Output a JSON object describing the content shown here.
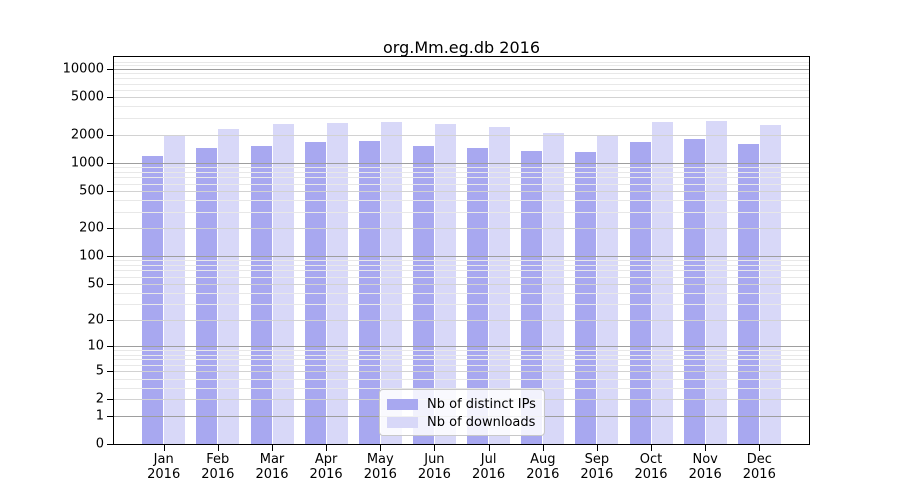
{
  "chart_data": {
    "type": "bar",
    "title": "org.Mm.eg.db 2016",
    "categories": [
      "Jan 2016",
      "Feb 2016",
      "Mar 2016",
      "Apr 2016",
      "May 2016",
      "Jun 2016",
      "Jul 2016",
      "Aug 2016",
      "Sep 2016",
      "Oct 2016",
      "Nov 2016",
      "Dec 2016"
    ],
    "series": [
      {
        "name": "Nb of distinct IPs",
        "color": "#a8a8f0",
        "values": [
          1180,
          1430,
          1520,
          1680,
          1710,
          1510,
          1430,
          1340,
          1300,
          1660,
          1810,
          1580
        ]
      },
      {
        "name": "Nb of downloads",
        "color": "#d8d8f8",
        "values": [
          1930,
          2280,
          2580,
          2640,
          2700,
          2580,
          2410,
          2060,
          1950,
          2730,
          2820,
          2550
        ]
      }
    ],
    "xlabel": "",
    "ylabel": "",
    "y_ticks": [
      0,
      1,
      2,
      5,
      10,
      20,
      50,
      100,
      200,
      500,
      1000,
      2000,
      5000,
      10000
    ],
    "scale": "log1p",
    "ylim": [
      0,
      13450
    ],
    "grid": true,
    "legend_position": "inside-bottom-center"
  }
}
